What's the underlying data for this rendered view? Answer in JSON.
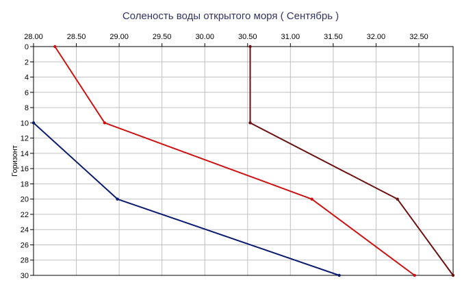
{
  "chart_data": {
    "type": "line",
    "title": "Соленость воды открытого моря    ( Сентябрь )",
    "xlabel": "",
    "ylabel": "Горизонт",
    "x_axis_position": "top",
    "y_inverted": true,
    "xlim": [
      28.0,
      32.9
    ],
    "ylim": [
      0,
      30
    ],
    "x_ticks": [
      "28.00",
      "28.50",
      "29.00",
      "29.50",
      "30.00",
      "30.50",
      "31.00",
      "31.50",
      "32.00",
      "32.50"
    ],
    "y_ticks": [
      "0",
      "2",
      "4",
      "6",
      "8",
      "10",
      "12",
      "14",
      "16",
      "18",
      "20",
      "22",
      "24",
      "26",
      "28",
      "30"
    ],
    "grid": true,
    "series": [
      {
        "color": "#6b0f0f",
        "points": [
          [
            30.53,
            0
          ],
          [
            30.53,
            10
          ],
          [
            32.25,
            20
          ],
          [
            32.9,
            30
          ]
        ]
      },
      {
        "color": "#cc1111",
        "points": [
          [
            28.25,
            0
          ],
          [
            28.83,
            10
          ],
          [
            31.25,
            20
          ],
          [
            32.45,
            30
          ]
        ]
      },
      {
        "color": "#0a1a6e",
        "points": [
          [
            28.0,
            10
          ],
          [
            28.98,
            20
          ],
          [
            31.57,
            30
          ]
        ]
      }
    ]
  }
}
